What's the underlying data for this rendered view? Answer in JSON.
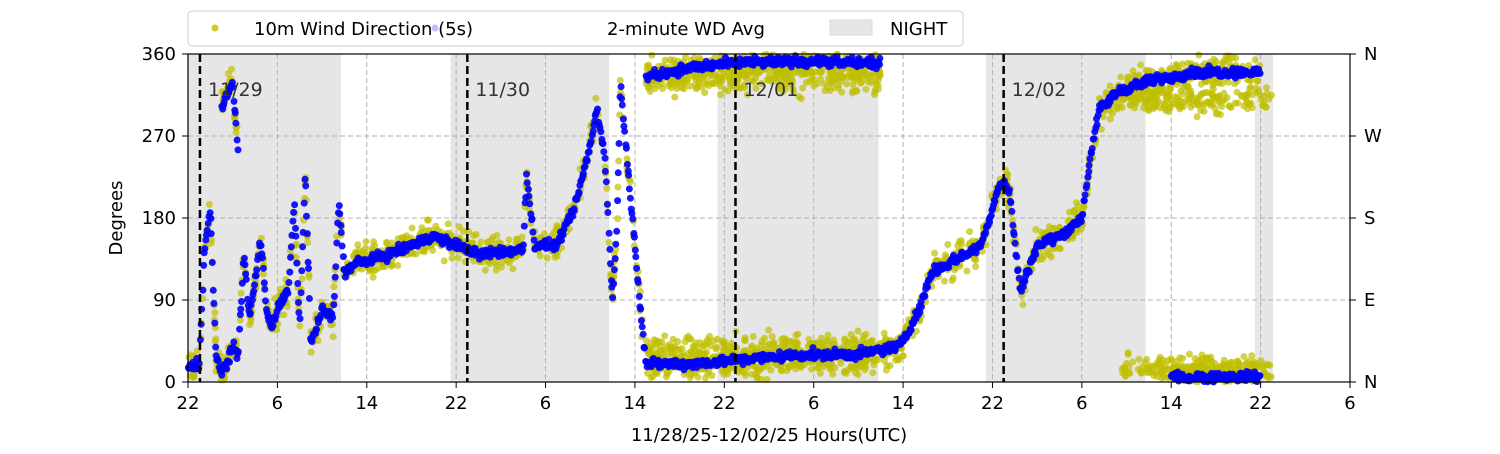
{
  "chart_data": {
    "type": "scatter",
    "xlabel": "11/28/25-12/02/25  Hours(UTC)",
    "ylabel": "Degrees",
    "ylim": [
      0,
      360
    ],
    "xlim_hours": [
      0,
      104
    ],
    "x_ticks": [
      {
        "h": 0,
        "label": "22"
      },
      {
        "h": 8,
        "label": "6"
      },
      {
        "h": 16,
        "label": "14"
      },
      {
        "h": 24,
        "label": "22"
      },
      {
        "h": 32,
        "label": "6"
      },
      {
        "h": 40,
        "label": "14"
      },
      {
        "h": 48,
        "label": "22"
      },
      {
        "h": 56,
        "label": "6"
      },
      {
        "h": 64,
        "label": "14"
      },
      {
        "h": 72,
        "label": "22"
      },
      {
        "h": 80,
        "label": "6"
      },
      {
        "h": 88,
        "label": "14"
      },
      {
        "h": 96,
        "label": "22"
      },
      {
        "h": 104,
        "label": "6"
      }
    ],
    "y_ticks": [
      0,
      90,
      180,
      270,
      360
    ],
    "y2_ticks": [
      {
        "v": 0,
        "label": "N"
      },
      {
        "v": 90,
        "label": "E"
      },
      {
        "v": 180,
        "label": "S"
      },
      {
        "v": 270,
        "label": "W"
      },
      {
        "v": 360,
        "label": "N"
      }
    ],
    "grid": true,
    "legend_placement": "top",
    "legend": [
      "10m Wind Direction (5s)",
      "2-minute WD Avg",
      "NIGHT"
    ],
    "night_hours": [
      [
        0,
        13.7
      ],
      [
        23.5,
        37.7
      ],
      [
        47.4,
        61.8
      ],
      [
        71.4,
        85.7
      ],
      [
        95.5,
        97.1
      ]
    ],
    "day_markers": [
      {
        "h": 1.07,
        "label": "11/29"
      },
      {
        "h": 25,
        "label": "11/30"
      },
      {
        "h": 49,
        "label": "12/01"
      },
      {
        "h": 73,
        "label": "12/02"
      }
    ],
    "series": [
      {
        "name": "10m Wind Direction (5s)",
        "color": "#bfbf00",
        "follows_avg_spread_deg": 28,
        "extra_bands": [
          {
            "hours": [
              41,
              62
            ],
            "mean": 335,
            "spread": 28
          },
          {
            "hours": [
              41,
              63
            ],
            "mean": 30,
            "spread": 32
          },
          {
            "hours": [
              83,
              97
            ],
            "mean": 310,
            "spread": 22
          },
          {
            "hours": [
              83.5,
              97
            ],
            "mean": 15,
            "spread": 20
          }
        ]
      },
      {
        "name": "2-minute WD Avg",
        "color": "#0000ff",
        "segments": [
          [
            [
              0,
              15
            ],
            [
              1,
              20
            ],
            [
              1.5,
              150
            ],
            [
              2,
              190
            ],
            [
              2.5,
              30
            ],
            [
              3,
              10
            ],
            [
              3.5,
              20
            ],
            [
              4,
              40
            ],
            [
              4.5,
              30
            ],
            [
              5,
              140
            ],
            [
              5.5,
              70
            ],
            [
              6,
              110
            ],
            [
              6.5,
              160
            ],
            [
              7,
              80
            ],
            [
              7.5,
              60
            ],
            [
              8,
              80
            ],
            [
              9,
              100
            ],
            [
              9.5,
              200
            ],
            [
              10,
              60
            ],
            [
              10.5,
              230
            ],
            [
              11,
              40
            ],
            [
              12,
              80
            ],
            [
              13,
              70
            ],
            [
              13.5,
              200
            ],
            [
              14,
              120
            ],
            [
              15,
              130
            ],
            [
              18,
              140
            ],
            [
              22,
              160
            ],
            [
              24,
              150
            ],
            [
              26,
              140
            ],
            [
              30,
              145
            ],
            [
              30.3,
              230
            ],
            [
              31,
              150
            ],
            [
              33,
              150
            ],
            [
              34.6,
              190
            ],
            [
              36,
              260
            ],
            [
              36.6,
              300
            ],
            [
              37.3,
              250
            ],
            [
              38,
              90
            ],
            [
              38.4,
              170
            ],
            [
              38.7,
              330
            ],
            [
              39.4,
              230
            ],
            [
              40,
              150
            ],
            [
              40.5,
              80
            ],
            [
              41,
              20
            ],
            [
              45,
              20
            ],
            [
              50,
              25
            ],
            [
              55,
              30
            ],
            [
              60,
              30
            ],
            [
              62,
              35
            ],
            [
              63.7,
              40
            ],
            [
              65.5,
              80
            ],
            [
              66.5,
              120
            ],
            [
              68,
              130
            ],
            [
              71,
              150
            ],
            [
              72.7,
              220
            ],
            [
              73.5,
              210
            ],
            [
              74.5,
              100
            ],
            [
              76,
              150
            ],
            [
              78,
              160
            ],
            [
              80,
              180
            ],
            [
              80.8,
              250
            ],
            [
              81.6,
              300
            ],
            [
              83.4,
              320
            ],
            [
              86,
              330
            ],
            [
              90,
              340
            ],
            [
              96,
              340
            ]
          ],
          [
            [
              3,
              300
            ],
            [
              4,
              330
            ],
            [
              4.5,
              250
            ]
          ],
          [
            [
              41,
              335
            ],
            [
              45,
              345
            ],
            [
              49,
              350
            ],
            [
              55,
              352
            ],
            [
              60,
              350
            ],
            [
              62,
              350
            ]
          ],
          [
            [
              88,
              5
            ],
            [
              96,
              6
            ]
          ]
        ]
      }
    ]
  }
}
